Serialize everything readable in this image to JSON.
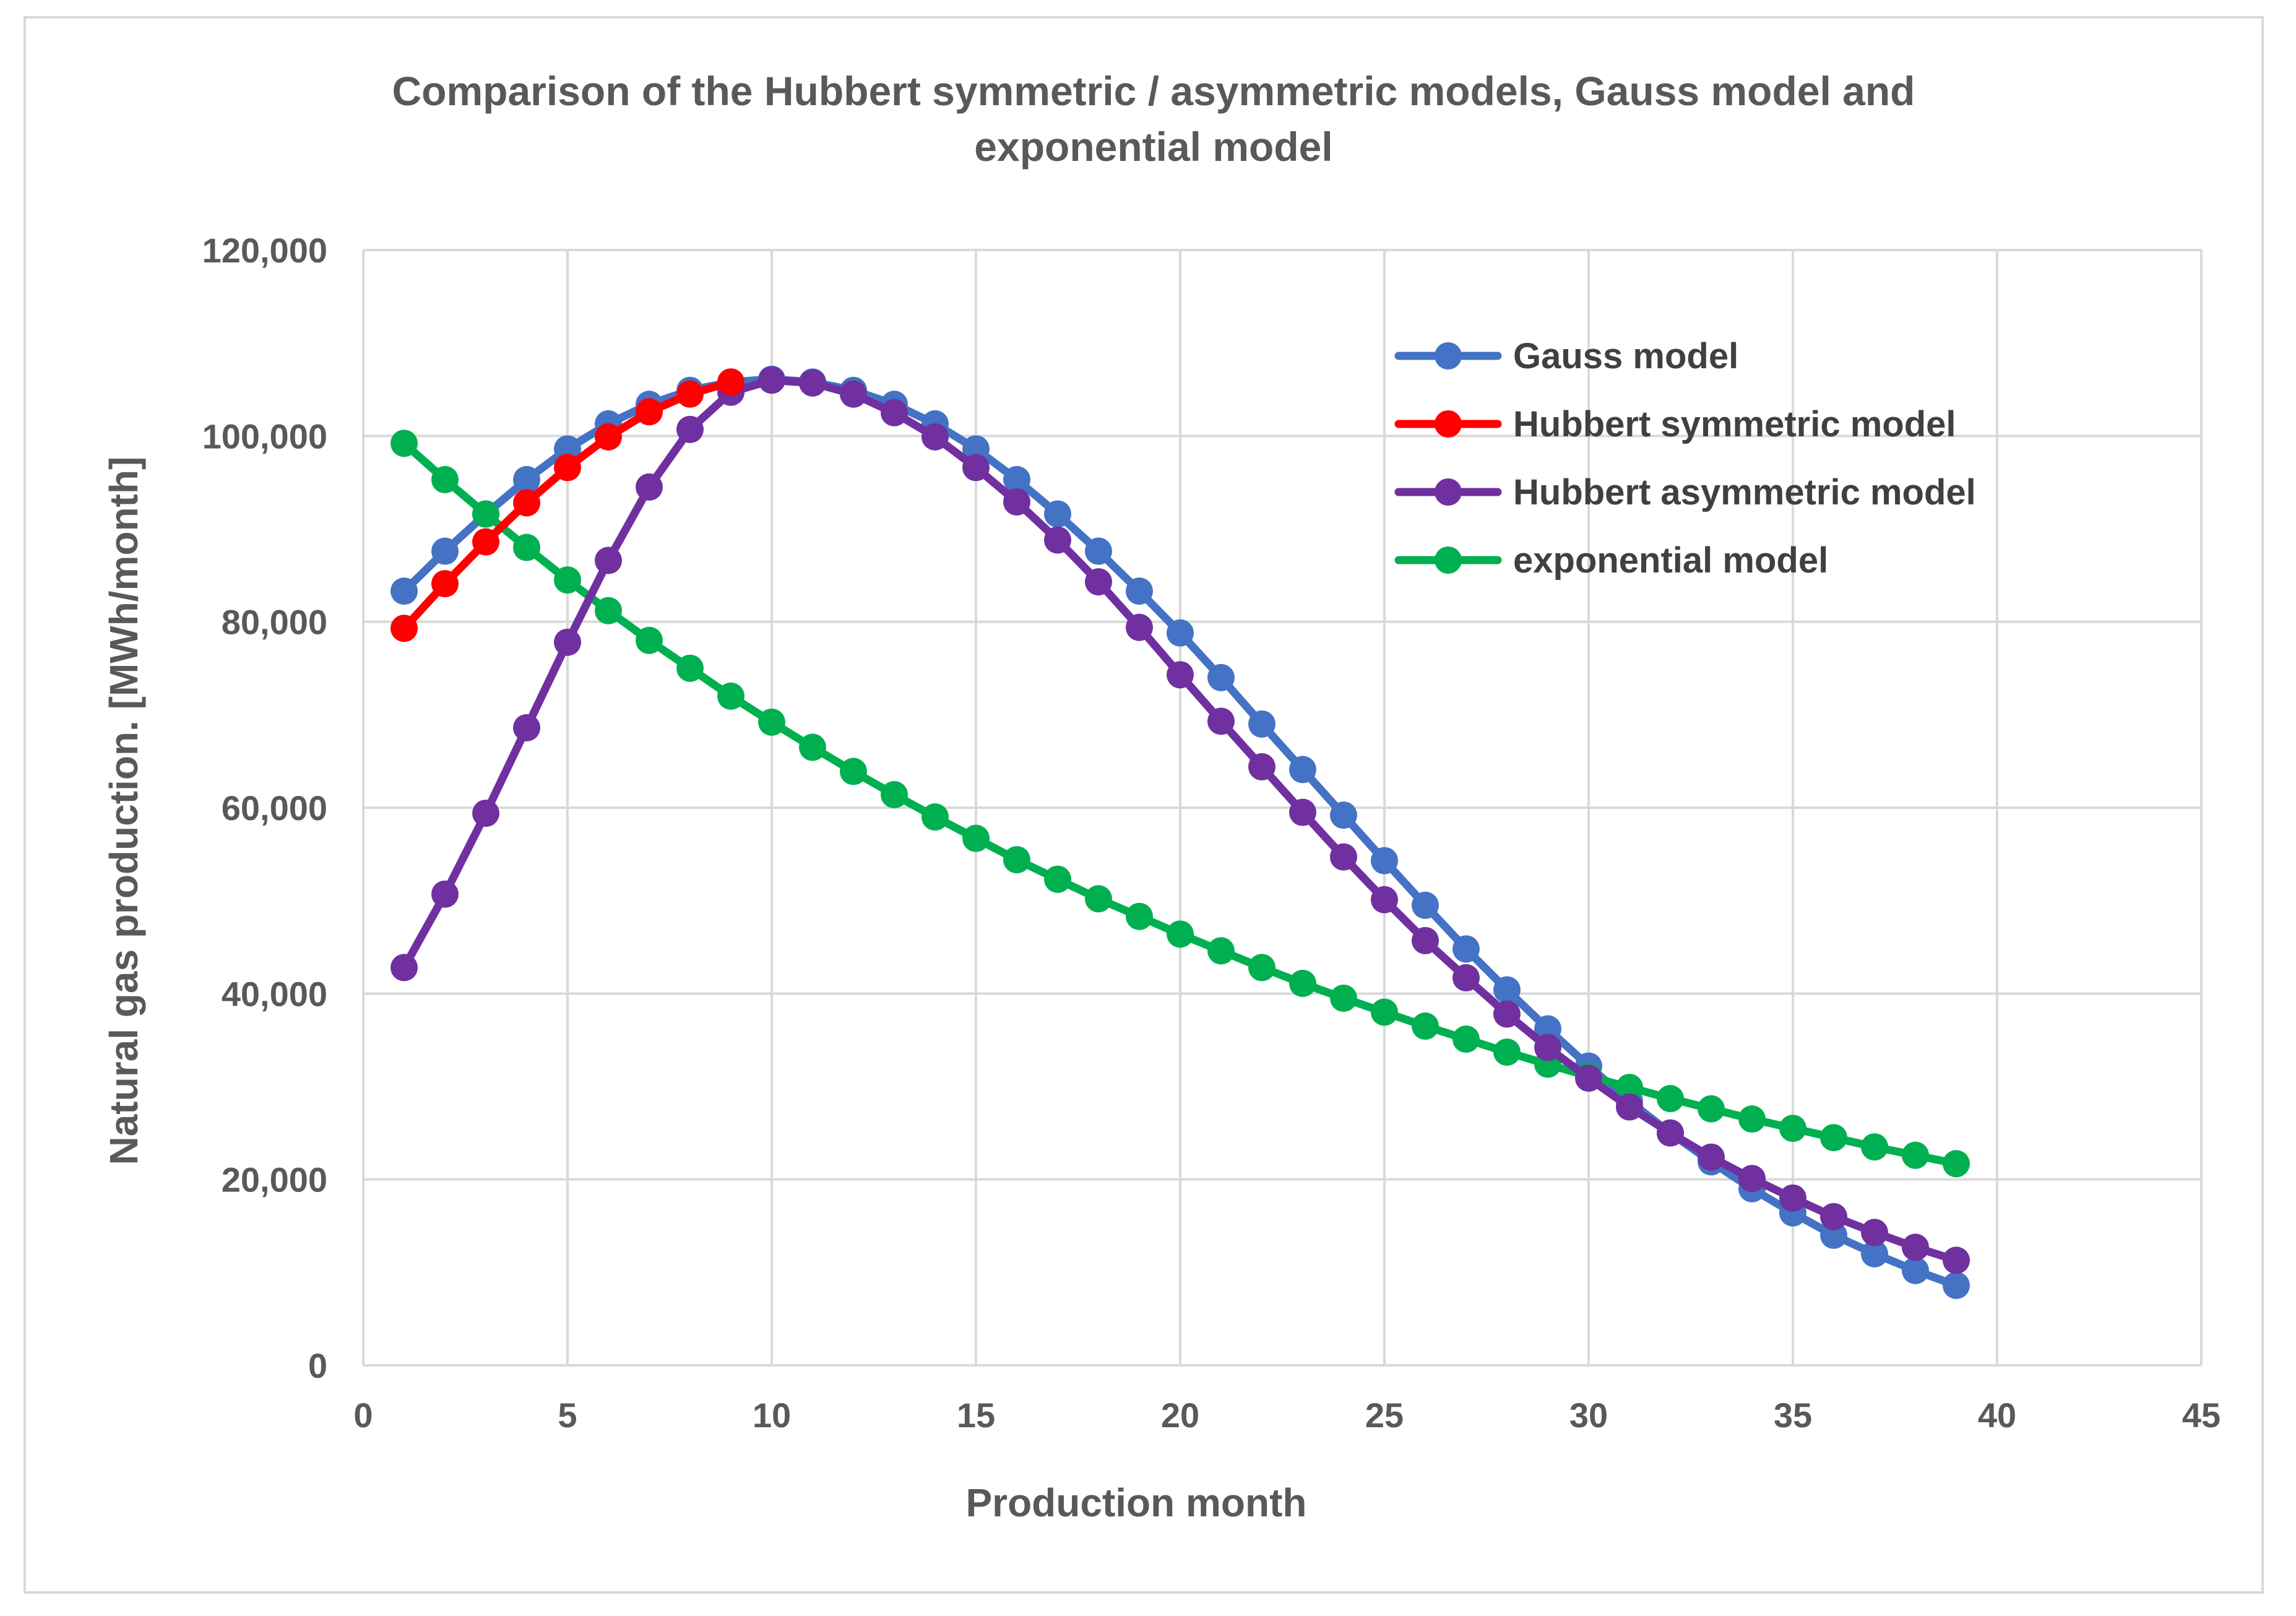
{
  "chart_data": {
    "type": "line",
    "title": "Comparison of the Hubbert symmetric / asymmetric models, Gauss model and exponential model",
    "title_lines": [
      "Comparison of the Hubbert symmetric / asymmetric models, Gauss model and",
      "exponential model"
    ],
    "xlabel": "Production month",
    "ylabel": "Natural gas production. [MWh/month]",
    "xlim": [
      0,
      45
    ],
    "ylim": [
      0,
      120000
    ],
    "x_ticks": [
      0,
      5,
      10,
      15,
      20,
      25,
      30,
      35,
      40,
      45
    ],
    "x_tick_labels": [
      "0",
      "5",
      "10",
      "15",
      "20",
      "25",
      "30",
      "35",
      "40",
      "45"
    ],
    "y_ticks": [
      0,
      20000,
      40000,
      60000,
      80000,
      100000,
      120000
    ],
    "y_tick_labels": [
      "0",
      "20,000",
      "40,000",
      "60,000",
      "80,000",
      "100,000",
      "120,000"
    ],
    "grid": true,
    "legend_position": "top-right",
    "series": [
      {
        "name": "Gauss model",
        "color": "#4472c4",
        "x": [
          1,
          2,
          3,
          4,
          5,
          6,
          7,
          8,
          9,
          10,
          11,
          12,
          13,
          14,
          15,
          16,
          17,
          18,
          19,
          20,
          21,
          22,
          23,
          24,
          25,
          26,
          27,
          28,
          29,
          30,
          31,
          32,
          33,
          34,
          35,
          36,
          37,
          38,
          39
        ],
        "values": [
          83300,
          87600,
          91600,
          95300,
          98600,
          101300,
          103400,
          104900,
          105800,
          106100,
          105800,
          104900,
          103400,
          101300,
          98600,
          95300,
          91600,
          87600,
          83300,
          78800,
          74000,
          69000,
          64100,
          59200,
          54300,
          49500,
          44800,
          40400,
          36200,
          32200,
          28400,
          25000,
          21900,
          19000,
          16400,
          14000,
          12000,
          10200,
          8600
        ]
      },
      {
        "name": "Hubbert symmetric model",
        "color": "#ff0000",
        "x": [
          1,
          2,
          3,
          4,
          5,
          6,
          7,
          8,
          9
        ],
        "values": [
          79300,
          84100,
          88600,
          92800,
          96600,
          99900,
          102600,
          104500,
          105800
        ]
      },
      {
        "name": "Hubbert asymmetric model",
        "color": "#7030a0",
        "x": [
          1,
          2,
          3,
          4,
          5,
          6,
          7,
          8,
          9,
          10,
          11,
          12,
          13,
          14,
          15,
          16,
          17,
          18,
          19,
          20,
          21,
          22,
          23,
          24,
          25,
          26,
          27,
          28,
          29,
          30,
          31,
          32,
          33,
          34,
          35,
          36,
          37,
          38,
          39
        ],
        "values": [
          42800,
          50700,
          59400,
          68600,
          77800,
          86600,
          94500,
          100700,
          104700,
          106000,
          105700,
          104500,
          102500,
          99900,
          96600,
          92900,
          88800,
          84300,
          79400,
          74300,
          69300,
          64400,
          59500,
          54700,
          50100,
          45700,
          41700,
          37800,
          34200,
          30900,
          27800,
          25000,
          22400,
          20100,
          18000,
          16000,
          14300,
          12700,
          11300
        ]
      },
      {
        "name": "exponential model",
        "color": "#00b050",
        "x": [
          1,
          2,
          3,
          4,
          5,
          6,
          7,
          8,
          9,
          10,
          11,
          12,
          13,
          14,
          15,
          16,
          17,
          18,
          19,
          20,
          21,
          22,
          23,
          24,
          25,
          26,
          27,
          28,
          29,
          30,
          31,
          32,
          33,
          34,
          35,
          36,
          37,
          38,
          39
        ],
        "values": [
          99200,
          95300,
          91600,
          88000,
          84500,
          81200,
          78000,
          75000,
          72000,
          69200,
          66500,
          63900,
          61400,
          59000,
          56700,
          54400,
          52300,
          50200,
          48300,
          46400,
          44600,
          42800,
          41100,
          39500,
          38000,
          36500,
          35100,
          33700,
          32400,
          31100,
          29900,
          28700,
          27600,
          26500,
          25500,
          24500,
          23500,
          22600,
          21700
        ]
      }
    ]
  }
}
